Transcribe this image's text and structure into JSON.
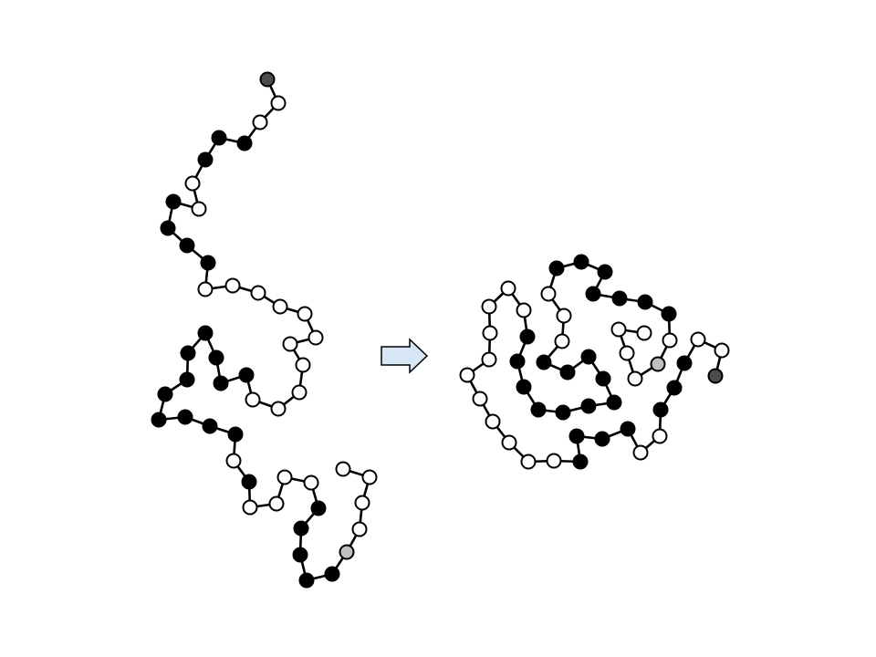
{
  "colors": {
    "background": "#ffffff",
    "stroke": "#000000",
    "hydrophobic_fill": "#000000",
    "polar_fill": "#ffffff",
    "start_fill": "#4d4d4d",
    "end_fill": "#bfbfbf",
    "arrow_fill": "#d6e6f5",
    "arrow_stroke": "#000000"
  },
  "legend_types": {
    "H": "hydrophobic",
    "P": "polar",
    "S": "start",
    "E": "end"
  },
  "diagrams": [
    {
      "state": "unfolded",
      "residue_types": [
        "S",
        "P",
        "P",
        "H",
        "H",
        "H",
        "P",
        "P",
        "H",
        "H",
        "H",
        "H",
        "P",
        "P",
        "P",
        "P",
        "P",
        "P",
        "P",
        "P",
        "P",
        "P",
        "P",
        "H",
        "H",
        "H",
        "H",
        "H",
        "H",
        "H",
        "H",
        "H",
        "H",
        "H",
        "P",
        "H",
        "P",
        "P",
        "P",
        "P",
        "H",
        "H",
        "H",
        "H",
        "H",
        "E"
      ]
    },
    {
      "state": "folded",
      "residue_types": [
        "S",
        "P",
        "P",
        "H",
        "H",
        "H",
        "P",
        "P",
        "H",
        "H",
        "H",
        "H",
        "P",
        "P",
        "P",
        "P",
        "P",
        "P",
        "P",
        "P",
        "P",
        "P",
        "P",
        "H",
        "H",
        "H",
        "H",
        "H",
        "H",
        "H",
        "H",
        "H",
        "H",
        "H",
        "P",
        "P",
        "P",
        "H",
        "H",
        "H",
        "H",
        "H",
        "H",
        "H",
        "P",
        "E"
      ]
    }
  ],
  "arrow": {
    "icon": "right-arrow-icon"
  }
}
